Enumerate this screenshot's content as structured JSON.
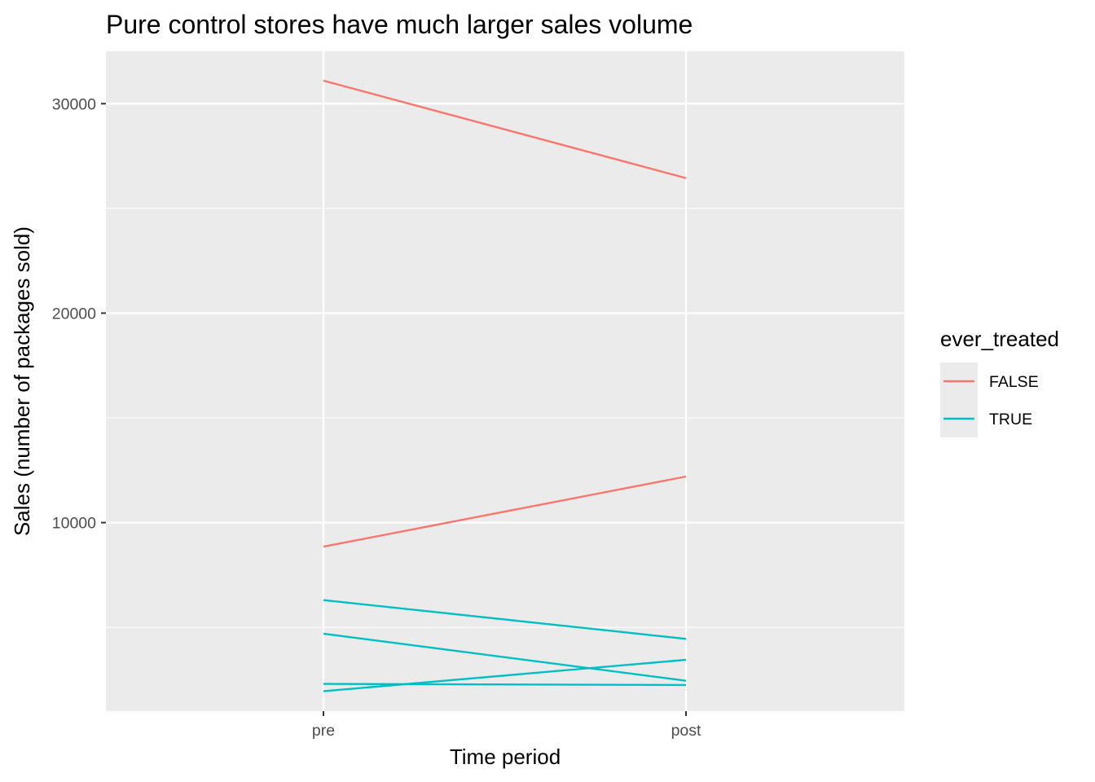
{
  "chart_data": {
    "type": "line",
    "title": "Pure control stores have much larger sales volume",
    "xlabel": "Time period",
    "ylabel": "Sales (number of packages sold)",
    "categories": [
      "pre",
      "post"
    ],
    "y_ticks": [
      "10000",
      "20000",
      "30000"
    ],
    "y_tick_values": [
      10000,
      20000,
      30000
    ],
    "ylim": [
      1000,
      32500
    ],
    "grid": true,
    "legend": {
      "title": "ever_treated",
      "position": "right",
      "entries": [
        {
          "label": "FALSE",
          "color": "#F8766D"
        },
        {
          "label": "TRUE",
          "color": "#00BFC4"
        }
      ]
    },
    "series": [
      {
        "group": "FALSE",
        "values": [
          31100,
          26450
        ]
      },
      {
        "group": "FALSE",
        "values": [
          8850,
          12200
        ]
      },
      {
        "group": "TRUE",
        "values": [
          6300,
          4450
        ]
      },
      {
        "group": "TRUE",
        "values": [
          4700,
          2450
        ]
      },
      {
        "group": "TRUE",
        "values": [
          2300,
          2250
        ]
      },
      {
        "group": "TRUE",
        "values": [
          1950,
          3450
        ]
      }
    ],
    "colors": {
      "panel_background": "#EBEBEB",
      "grid_line": "#FFFFFF",
      "legend_key_background": "#EBEBEB"
    }
  }
}
